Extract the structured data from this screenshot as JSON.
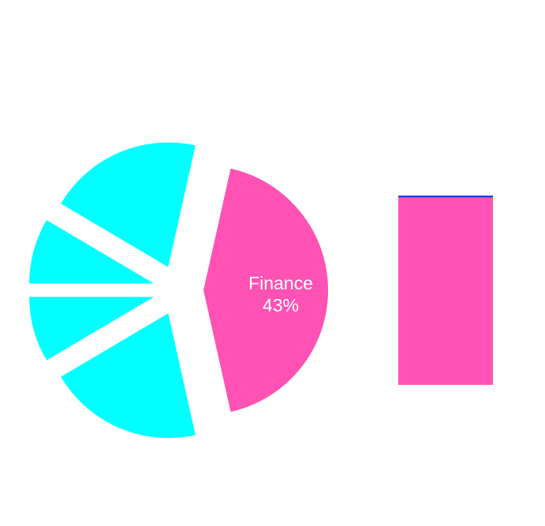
{
  "chart_data": [
    {
      "type": "pie",
      "title": "",
      "slices": [
        {
          "label": "Finance",
          "value": 43,
          "value_label": "43%",
          "color": "#ff52b4",
          "exploded": true,
          "show_label": true
        },
        {
          "label": "",
          "value": 20,
          "color": "#00ffff",
          "exploded": true,
          "show_label": false
        },
        {
          "label": "",
          "value": 8.5,
          "color": "#00ffff",
          "exploded": true,
          "show_label": false
        },
        {
          "label": "",
          "value": 8.5,
          "color": "#00ffff",
          "exploded": true,
          "show_label": false
        },
        {
          "label": "",
          "value": 20,
          "color": "#00ffff",
          "exploded": true,
          "show_label": false
        }
      ]
    },
    {
      "type": "bar",
      "orientation": "vertical",
      "stacked": true,
      "categories": [
        ""
      ],
      "series": [
        {
          "name": "",
          "values": [
            99
          ],
          "color": "#ff52b4"
        },
        {
          "name": "",
          "values": [
            1
          ],
          "color": "#1740e8"
        }
      ],
      "ylim": [
        0,
        100
      ]
    }
  ]
}
